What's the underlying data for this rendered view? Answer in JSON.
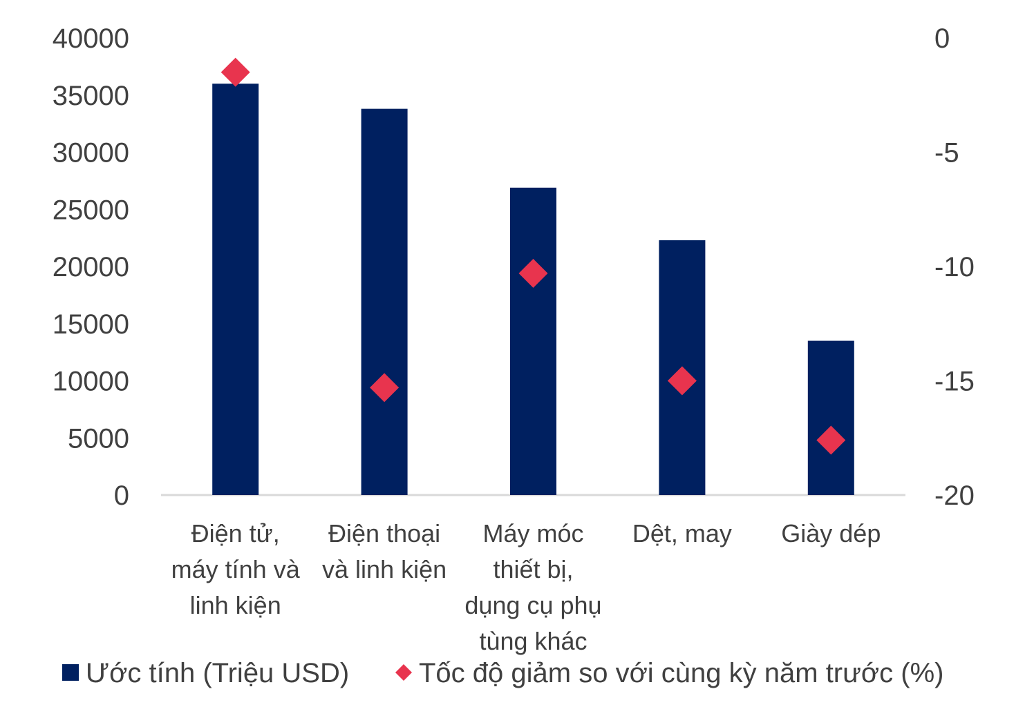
{
  "chart_data": {
    "type": "bar",
    "categories": [
      [
        "Điện tử,",
        "máy tính và",
        "linh kiện"
      ],
      [
        "Điện thoại",
        "và linh kiện"
      ],
      [
        "Máy móc",
        "thiết bị,",
        "dụng cụ phụ",
        "tùng khác"
      ],
      [
        "Dệt, may"
      ],
      [
        "Giày dép"
      ]
    ],
    "series": [
      {
        "name": "Ước tính (Triệu USD)",
        "type": "bar",
        "axis": "left",
        "color": "#002060",
        "values": [
          36000,
          33800,
          26900,
          22300,
          13500
        ]
      },
      {
        "name": "Tốc độ giảm so với cùng kỳ năm trước (%)",
        "type": "scatter",
        "marker": "diamond",
        "axis": "right",
        "color": "#e8344e",
        "values": [
          -1.5,
          -15.3,
          -10.3,
          -15.0,
          -17.6
        ]
      }
    ],
    "y_left": {
      "ylim": [
        0,
        40000
      ],
      "ticks": [
        "0",
        "5000",
        "10000",
        "15000",
        "20000",
        "25000",
        "30000",
        "35000",
        "40000"
      ]
    },
    "y_right": {
      "ylim": [
        -20,
        0
      ],
      "ticks": [
        "-20",
        "-15",
        "-10",
        "-5",
        "0"
      ]
    },
    "grid": false,
    "legend_position": "bottom"
  }
}
